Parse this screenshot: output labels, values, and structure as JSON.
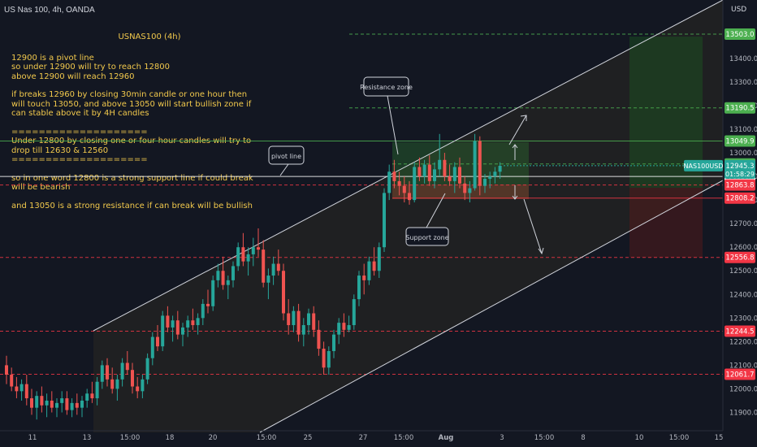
{
  "header": {
    "symbol": "US Nas 100, 4h, OANDA",
    "currency": "USD"
  },
  "notes": {
    "title": "USNAS100  (4h)",
    "paragraphs": [
      "12900 is a pivot line\nso under 12900 will try to reach 12800\nabove 12900 will reach 12960",
      "if breaks 12960 by closing 30min candle or one hour then\nwill touch 13050, and above 13050 will start bullish zone if\ncan stable above it by 4H candles",
      "====================\nUnder 12800 by closing one or four hour candles will try to\ndrop till 12630 & 12560\n====================",
      "so in one word 12800 is a strong support line if could break\nwill be bearish",
      "and 13050 is a strong resistance if can break will be bullish"
    ]
  },
  "callouts": {
    "resistance": "Resistance zone",
    "pivot": "pivot line",
    "support": "Support zone"
  },
  "chart_data": {
    "type": "candlestick",
    "ylim": [
      11850,
      13620
    ],
    "y_ticks": [
      11900,
      12000,
      12100,
      12200,
      12300,
      12400,
      12500,
      12600,
      12700,
      12800,
      12900,
      13000,
      13100,
      13200,
      13300,
      13400
    ],
    "x_ticks": [
      "11",
      "13",
      "15:00",
      "18",
      "20",
      "15:00",
      "25",
      "27",
      "15:00",
      "Aug",
      "3",
      "15:00",
      "8",
      "10",
      "15:00",
      "15"
    ],
    "current_symbol": "NAS100USD",
    "current_price": 12945.3,
    "countdown": "01:58:29",
    "price_labels": [
      {
        "value": 13503.0,
        "text": "13503.0",
        "color": "#4caf50"
      },
      {
        "value": 13190.5,
        "text": "13190.5",
        "color": "#4caf50"
      },
      {
        "value": 13049.9,
        "text": "13049.9",
        "color": "#4caf50"
      },
      {
        "value": 12952.7,
        "text": "12952.7",
        "color": "#4caf50"
      },
      {
        "value": 12899.7,
        "text": "12899.7",
        "color": "#ffffff"
      },
      {
        "value": 12863.8,
        "text": "12863.8",
        "color": "#f23645"
      },
      {
        "value": 12808.2,
        "text": "12808.2",
        "color": "#f23645"
      },
      {
        "value": 12556.8,
        "text": "12556.8",
        "color": "#f23645"
      },
      {
        "value": 12244.5,
        "text": "12244.5",
        "color": "#f23645"
      },
      {
        "value": 12061.7,
        "text": "12061.7",
        "color": "#f23645"
      }
    ],
    "candles": [
      [
        12100,
        12140,
        12020,
        12060
      ],
      [
        12060,
        12090,
        11990,
        12010
      ],
      [
        12010,
        12050,
        11960,
        11990
      ],
      [
        11990,
        12040,
        11950,
        12020
      ],
      [
        12020,
        12060,
        11930,
        11960
      ],
      [
        11960,
        12000,
        11890,
        11920
      ],
      [
        11920,
        11990,
        11870,
        11970
      ],
      [
        11970,
        12010,
        11900,
        11930
      ],
      [
        11930,
        11980,
        11880,
        11950
      ],
      [
        11950,
        11990,
        11900,
        11920
      ],
      [
        11920,
        11960,
        11880,
        11940
      ],
      [
        11940,
        11990,
        11900,
        11960
      ],
      [
        11960,
        11990,
        11890,
        11910
      ],
      [
        11910,
        11960,
        11880,
        11940
      ],
      [
        11940,
        11980,
        11890,
        11920
      ],
      [
        11920,
        11970,
        11880,
        11950
      ],
      [
        11950,
        12000,
        11920,
        11980
      ],
      [
        11980,
        12030,
        11940,
        11960
      ],
      [
        11960,
        12050,
        11930,
        12030
      ],
      [
        12030,
        12120,
        12000,
        12100
      ],
      [
        12100,
        12130,
        12010,
        12040
      ],
      [
        12040,
        12090,
        11980,
        12000
      ],
      [
        12000,
        12060,
        11950,
        12040
      ],
      [
        12040,
        12130,
        12010,
        12110
      ],
      [
        12110,
        12160,
        12060,
        12080
      ],
      [
        12080,
        12110,
        11980,
        12010
      ],
      [
        12010,
        12050,
        11960,
        11990
      ],
      [
        11990,
        12060,
        11960,
        12040
      ],
      [
        12040,
        12150,
        12020,
        12130
      ],
      [
        12130,
        12240,
        12100,
        12220
      ],
      [
        12220,
        12270,
        12160,
        12180
      ],
      [
        12180,
        12330,
        12160,
        12310
      ],
      [
        12310,
        12350,
        12240,
        12260
      ],
      [
        12260,
        12310,
        12200,
        12290
      ],
      [
        12290,
        12330,
        12210,
        12230
      ],
      [
        12230,
        12280,
        12180,
        12260
      ],
      [
        12260,
        12310,
        12220,
        12290
      ],
      [
        12290,
        12340,
        12250,
        12270
      ],
      [
        12270,
        12320,
        12230,
        12300
      ],
      [
        12300,
        12380,
        12270,
        12360
      ],
      [
        12360,
        12420,
        12320,
        12350
      ],
      [
        12350,
        12480,
        12330,
        12460
      ],
      [
        12460,
        12530,
        12430,
        12500
      ],
      [
        12500,
        12560,
        12420,
        12440
      ],
      [
        12440,
        12480,
        12380,
        12460
      ],
      [
        12460,
        12540,
        12430,
        12520
      ],
      [
        12520,
        12620,
        12500,
        12600
      ],
      [
        12600,
        12660,
        12520,
        12540
      ],
      [
        12540,
        12600,
        12480,
        12570
      ],
      [
        12570,
        12640,
        12520,
        12600
      ],
      [
        12600,
        12680,
        12560,
        12590
      ],
      [
        12590,
        12630,
        12430,
        12450
      ],
      [
        12450,
        12510,
        12380,
        12480
      ],
      [
        12480,
        12560,
        12440,
        12530
      ],
      [
        12530,
        12590,
        12480,
        12500
      ],
      [
        12500,
        12530,
        12290,
        12320
      ],
      [
        12320,
        12380,
        12230,
        12270
      ],
      [
        12270,
        12350,
        12240,
        12330
      ],
      [
        12330,
        12360,
        12200,
        12230
      ],
      [
        12230,
        12300,
        12180,
        12270
      ],
      [
        12270,
        12340,
        12230,
        12320
      ],
      [
        12320,
        12350,
        12220,
        12250
      ],
      [
        12250,
        12290,
        12140,
        12170
      ],
      [
        12170,
        12200,
        12060,
        12090
      ],
      [
        12090,
        12180,
        12060,
        12160
      ],
      [
        12160,
        12250,
        12130,
        12230
      ],
      [
        12230,
        12300,
        12190,
        12280
      ],
      [
        12280,
        12320,
        12220,
        12250
      ],
      [
        12250,
        12310,
        12240,
        12270
      ],
      [
        12270,
        12400,
        12250,
        12380
      ],
      [
        12380,
        12500,
        12350,
        12480
      ],
      [
        12480,
        12530,
        12400,
        12460
      ],
      [
        12460,
        12560,
        12440,
        12540
      ],
      [
        12540,
        12600,
        12480,
        12500
      ],
      [
        12500,
        12620,
        12470,
        12600
      ],
      [
        12600,
        12850,
        12580,
        12830
      ],
      [
        12830,
        12950,
        12800,
        12920
      ],
      [
        12920,
        12970,
        12850,
        12880
      ],
      [
        12880,
        12920,
        12820,
        12860
      ],
      [
        12860,
        12900,
        12790,
        12830
      ],
      [
        12830,
        12880,
        12780,
        12800
      ],
      [
        12800,
        12960,
        12790,
        12940
      ],
      [
        12940,
        12980,
        12880,
        12900
      ],
      [
        12900,
        12970,
        12870,
        12950
      ],
      [
        12950,
        12990,
        12860,
        12880
      ],
      [
        12880,
        12960,
        12850,
        12930
      ],
      [
        12930,
        13080,
        12900,
        12970
      ],
      [
        12970,
        13000,
        12880,
        12900
      ],
      [
        12900,
        12950,
        12860,
        12880
      ],
      [
        12880,
        12960,
        12830,
        12940
      ],
      [
        12940,
        12980,
        12850,
        12870
      ],
      [
        12870,
        12900,
        12800,
        12830
      ],
      [
        12830,
        12880,
        12790,
        12850
      ],
      [
        12850,
        13080,
        12840,
        13050
      ],
      [
        13050,
        13070,
        12820,
        12860
      ],
      [
        12860,
        12910,
        12830,
        12890
      ],
      [
        12890,
        12920,
        12850,
        12900
      ],
      [
        12900,
        12940,
        12870,
        12920
      ],
      [
        12920,
        12960,
        12890,
        12945
      ]
    ]
  }
}
